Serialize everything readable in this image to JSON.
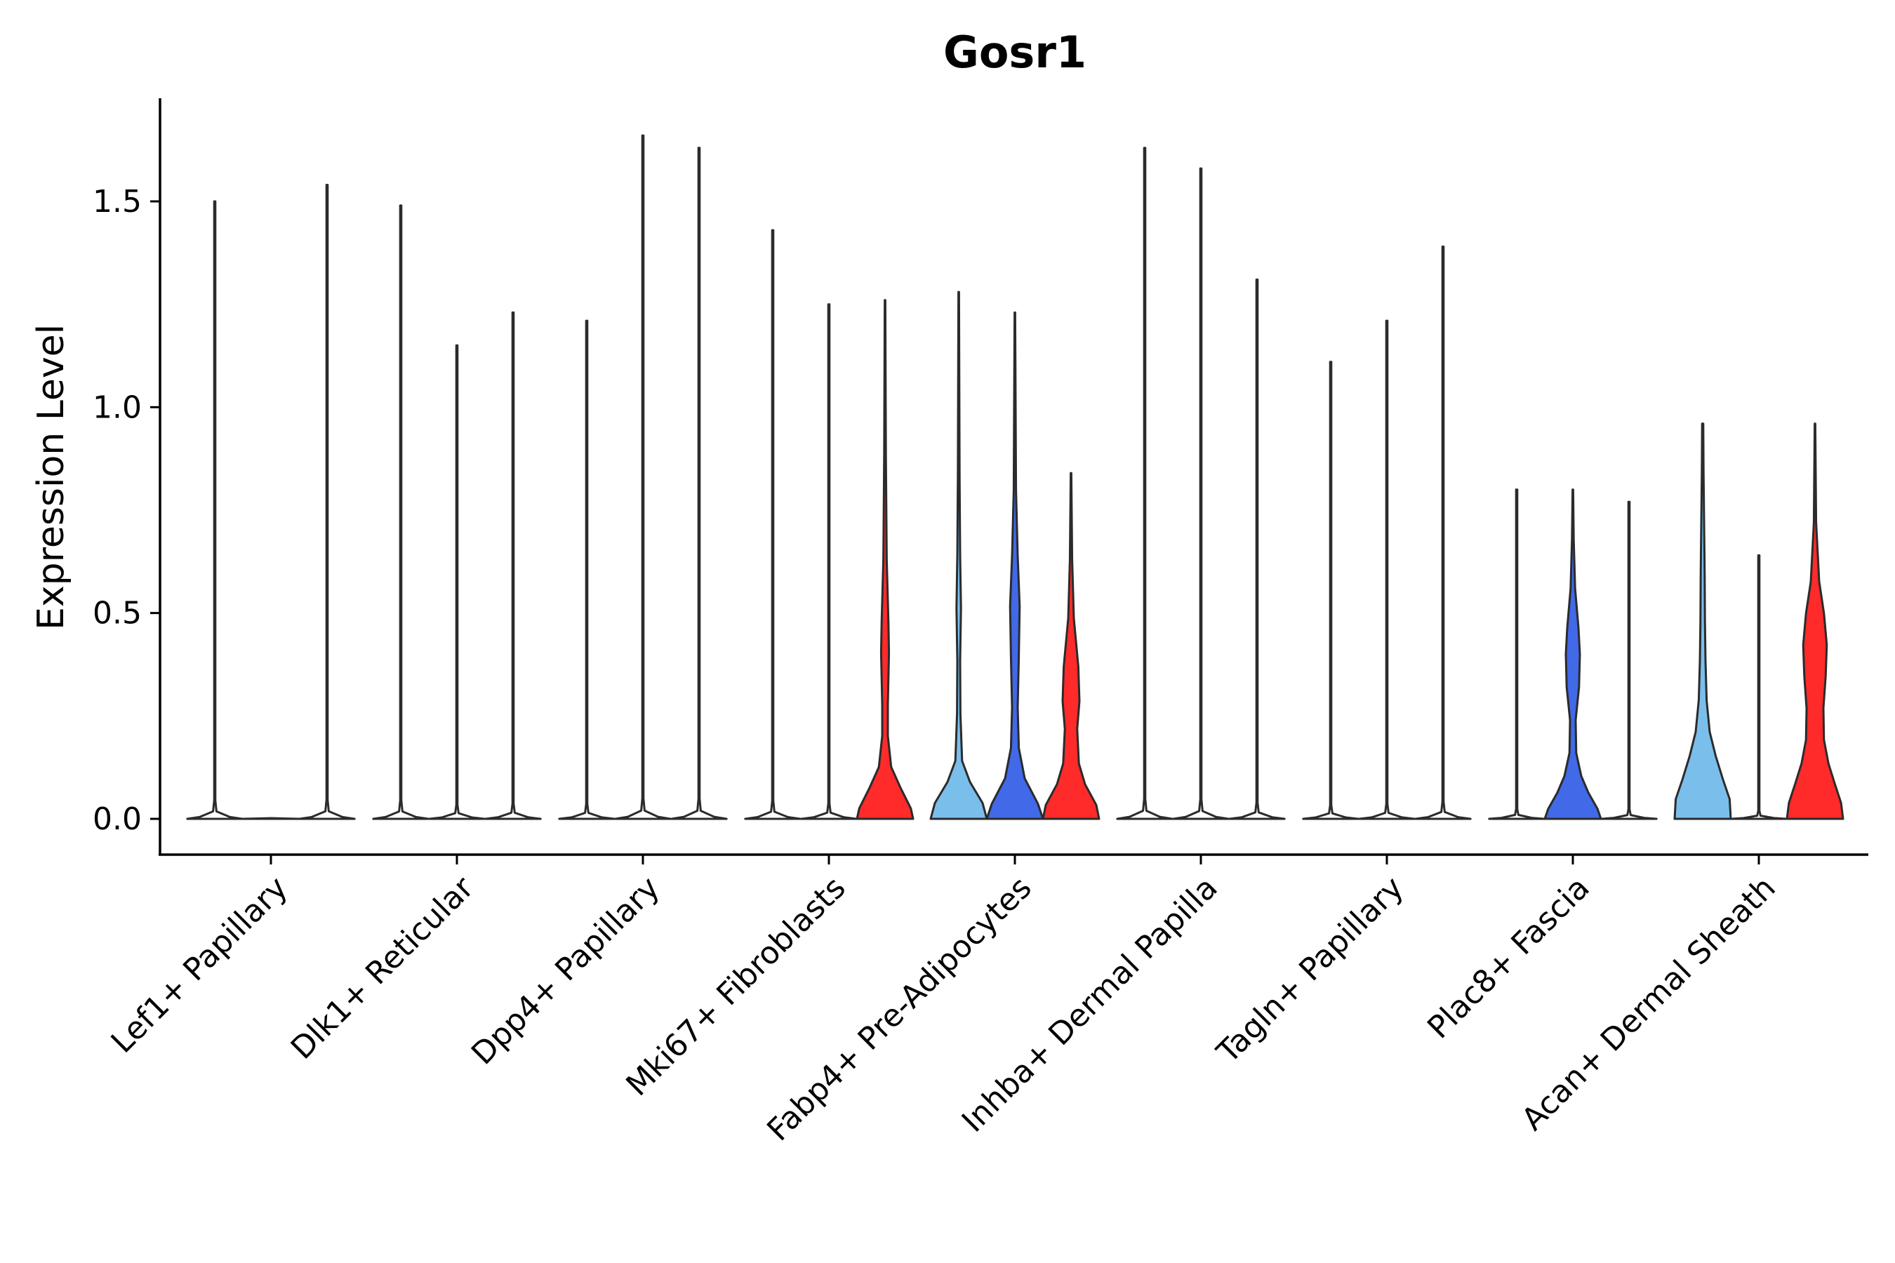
{
  "chart_data": {
    "type": "violin",
    "title": "Gosr1",
    "xlabel": "",
    "ylabel": "Expression Level",
    "ylim": [
      -0.085,
      1.75
    ],
    "yticks": [
      "0.0",
      "0.5",
      "1.0",
      "1.5"
    ],
    "ytick_values": [
      0,
      0.5,
      1.0,
      1.5
    ],
    "grid": false,
    "legend": "none",
    "colors": {
      "group1": "#7ABFEB",
      "group2": "#4169E8",
      "group3": "#FF2A2A",
      "zero": "#ffffff",
      "outline": "#2b2b2b"
    },
    "categories": [
      "Lef1+ Papillary",
      "Dlk1+ Reticular",
      "Dpp4+ Papillary",
      "Mki67+ Fibroblasts",
      "Fabp4+ Pre-Adipocytes",
      "Inhba+ Dermal Papilla",
      "Tagln+ Papillary",
      "Plac8+ Fascia",
      "Acan+ Dermal Sheath"
    ],
    "violins": [
      {
        "category": 0,
        "group": 0,
        "max": 1.5,
        "shape": "flat"
      },
      {
        "category": 0,
        "group": 1,
        "max": 0.0,
        "shape": "flat"
      },
      {
        "category": 0,
        "group": 2,
        "max": 1.54,
        "shape": "flat"
      },
      {
        "category": 1,
        "group": 0,
        "max": 1.49,
        "shape": "flat"
      },
      {
        "category": 1,
        "group": 1,
        "max": 1.15,
        "shape": "flat"
      },
      {
        "category": 1,
        "group": 2,
        "max": 1.23,
        "shape": "flat"
      },
      {
        "category": 2,
        "group": 0,
        "max": 1.21,
        "shape": "flat"
      },
      {
        "category": 2,
        "group": 1,
        "max": 1.66,
        "shape": "flat"
      },
      {
        "category": 2,
        "group": 2,
        "max": 1.63,
        "shape": "flat"
      },
      {
        "category": 3,
        "group": 0,
        "max": 1.43,
        "shape": "flat"
      },
      {
        "category": 3,
        "group": 1,
        "max": 1.25,
        "shape": "flat"
      },
      {
        "category": 3,
        "group": 2,
        "max": 1.26,
        "shape": "red"
      },
      {
        "category": 4,
        "group": 0,
        "max": 1.28,
        "shape": "light"
      },
      {
        "category": 4,
        "group": 1,
        "max": 1.23,
        "shape": "blue"
      },
      {
        "category": 4,
        "group": 2,
        "max": 0.84,
        "shape": "red2"
      },
      {
        "category": 5,
        "group": 0,
        "max": 1.63,
        "shape": "flat"
      },
      {
        "category": 5,
        "group": 1,
        "max": 1.58,
        "shape": "flat"
      },
      {
        "category": 5,
        "group": 2,
        "max": 1.31,
        "shape": "flat"
      },
      {
        "category": 6,
        "group": 0,
        "max": 1.11,
        "shape": "flat"
      },
      {
        "category": 6,
        "group": 1,
        "max": 1.21,
        "shape": "flat"
      },
      {
        "category": 6,
        "group": 2,
        "max": 1.39,
        "shape": "flat"
      },
      {
        "category": 7,
        "group": 0,
        "max": 0.8,
        "shape": "flat"
      },
      {
        "category": 7,
        "group": 1,
        "max": 0.8,
        "shape": "blue2"
      },
      {
        "category": 7,
        "group": 2,
        "max": 0.77,
        "shape": "flat"
      },
      {
        "category": 8,
        "group": 0,
        "max": 0.96,
        "shape": "light2"
      },
      {
        "category": 8,
        "group": 1,
        "max": 0.64,
        "shape": "flat"
      },
      {
        "category": 8,
        "group": 2,
        "max": 0.96,
        "shape": "red3"
      }
    ]
  }
}
